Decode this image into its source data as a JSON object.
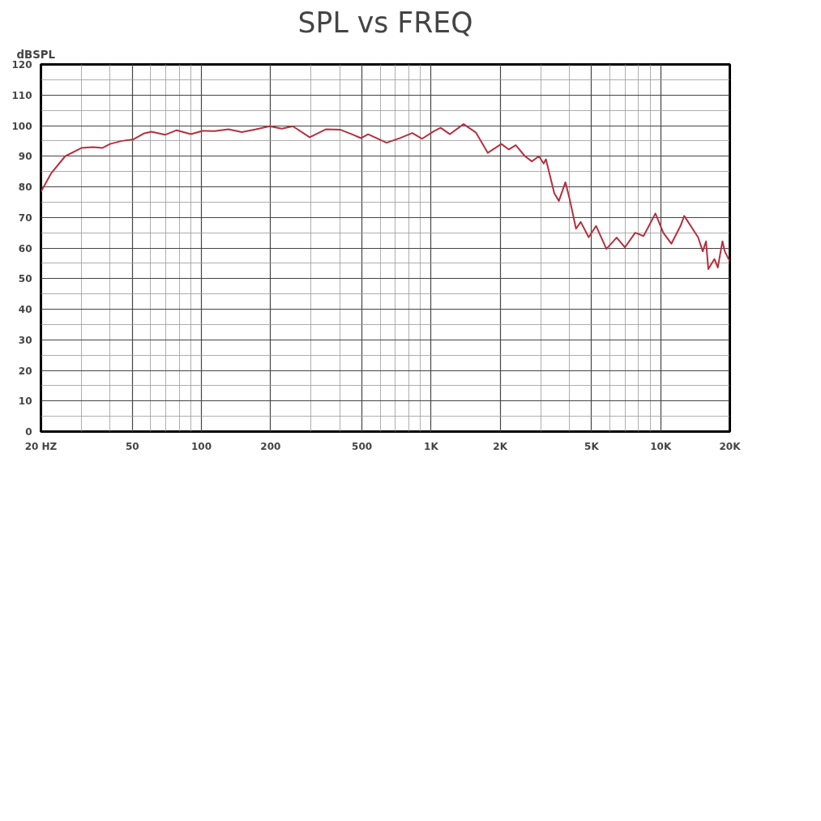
{
  "chart_data": {
    "type": "line",
    "title": "SPL vs FREQ",
    "ylabel": "dBSPL",
    "log": "x",
    "grid": true,
    "marker": "none",
    "line_style": "solid",
    "xlim": [
      20,
      20000
    ],
    "ylim": [
      0,
      120
    ],
    "xticks": [
      {
        "value": 20,
        "label": "20 HZ"
      },
      50,
      100,
      200,
      500,
      {
        "value": 1000,
        "label": "1K"
      },
      {
        "value": 2000,
        "label": "2K"
      },
      {
        "value": 5000,
        "label": "5K"
      },
      {
        "value": 10000,
        "label": "10K"
      },
      {
        "value": 20000,
        "label": "20K"
      }
    ],
    "yticks": [
      0,
      10,
      20,
      30,
      40,
      50,
      60,
      70,
      80,
      90,
      100,
      110,
      120
    ],
    "x": [
      20,
      22.2,
      25.5,
      30,
      33.7,
      37,
      40,
      45,
      50.6,
      56,
      60.6,
      69.5,
      78,
      90,
      101,
      114,
      131,
      150,
      173,
      198,
      224,
      250,
      296,
      348,
      401,
      452,
      496,
      532,
      640,
      736,
      828,
      913,
      1029,
      1101,
      1208,
      1385,
      1570,
      1765,
      2024,
      2182,
      2338,
      2564,
      2747,
      2949,
      3092,
      3164,
      3441,
      3603,
      3846,
      4030,
      4278,
      4485,
      4857,
      5234,
      5801,
      6431,
      6987,
      7745,
      8422,
      9484,
      10260,
      11130,
      12195,
      12660,
      14550,
      15245,
      15755,
      16120,
      17140,
      17730,
      18580,
      19010,
      20000
    ],
    "series": [
      {
        "color": "#b5303f",
        "values": [
          78.4,
          84.5,
          90,
          92.7,
          93,
          92.7,
          94,
          95,
          95.5,
          97.4,
          98,
          97,
          98.5,
          97.2,
          98.3,
          98.2,
          98.8,
          97.9,
          98.8,
          99.8,
          99,
          99.8,
          96.2,
          98.8,
          98.7,
          97.2,
          95.9,
          97.2,
          94.4,
          96,
          97.6,
          95.7,
          98.2,
          99.3,
          97.2,
          100.5,
          97.7,
          91.1,
          94,
          92.2,
          93.6,
          90,
          88.3,
          90,
          87.6,
          89,
          77.9,
          75.4,
          81.5,
          75.4,
          66.3,
          68.5,
          63.5,
          67.2,
          59.7,
          63.4,
          60.2,
          65,
          63.9,
          71.3,
          65,
          61.4,
          67.2,
          70.5,
          63.5,
          58.9,
          62.2,
          53.1,
          56.4,
          53.6,
          62.2,
          58.9,
          55.6
        ]
      }
    ]
  }
}
